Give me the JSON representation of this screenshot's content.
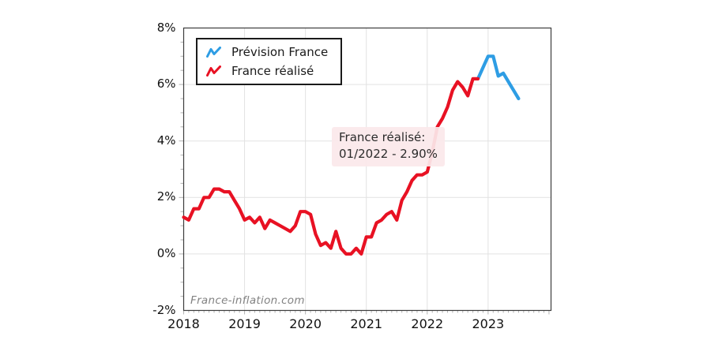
{
  "watermark": "France-inflation.com",
  "legend": {
    "items": [
      {
        "label": "Prévision France",
        "color": "#2e9de4",
        "icon": "zigzag-line-icon"
      },
      {
        "label": "France réalisé",
        "color": "#e81123",
        "icon": "zigzag-line-icon"
      }
    ]
  },
  "tooltip": {
    "series": "France réalisé:",
    "value": "01/2022 - 2.90%"
  },
  "colors": {
    "forecast_blue": "#2e9de4",
    "realized_red": "#e81123",
    "grid": "#e2e2e2",
    "axis_border": "#3c3c3c",
    "tick": "#b3b3b3",
    "text": "#111111",
    "tooltip_bg": "#fbe8eb"
  },
  "chart_data": {
    "type": "line",
    "title": "",
    "xlabel": "",
    "ylabel": "",
    "grid": true,
    "legend_position": "top-left",
    "ylim": [
      -2,
      8
    ],
    "y_major_step": 2,
    "y_minor_step": 0.5,
    "y_tick_labels": [
      "8%",
      "6%",
      "4%",
      "2%",
      "0%",
      "-2%"
    ],
    "x_tick_labels": [
      "2018",
      "2019",
      "2020",
      "2021",
      "2022",
      "2023"
    ],
    "x_start": "2018-01",
    "x_freq": "monthly",
    "x_months_span": 72.4,
    "hover_point": {
      "series": "France réalisé",
      "month": "01/2022",
      "value": 2.9
    },
    "series": [
      {
        "name": "France réalisé",
        "color": "#e81123",
        "start_month_index": 0,
        "start": "2018-01",
        "values": [
          1.3,
          1.2,
          1.6,
          1.6,
          2.0,
          2.0,
          2.3,
          2.3,
          2.2,
          2.2,
          1.9,
          1.6,
          1.2,
          1.3,
          1.1,
          1.3,
          0.9,
          1.2,
          1.1,
          1.0,
          0.9,
          0.8,
          1.0,
          1.5,
          1.5,
          1.4,
          0.7,
          0.3,
          0.4,
          0.2,
          0.8,
          0.2,
          0.0,
          0.0,
          0.2,
          0.0,
          0.6,
          0.6,
          1.1,
          1.2,
          1.4,
          1.5,
          1.2,
          1.9,
          2.2,
          2.6,
          2.8,
          2.8,
          2.9,
          3.6,
          4.5,
          4.8,
          5.2,
          5.8,
          6.1,
          5.9,
          5.6,
          6.2,
          6.2
        ]
      },
      {
        "name": "Prévision France",
        "color": "#2e9de4",
        "start_month_index": 58,
        "start": "2022-11",
        "values": [
          6.2,
          6.6,
          7.0,
          7.0,
          6.3,
          6.4,
          6.1,
          5.8,
          5.5
        ]
      }
    ]
  }
}
